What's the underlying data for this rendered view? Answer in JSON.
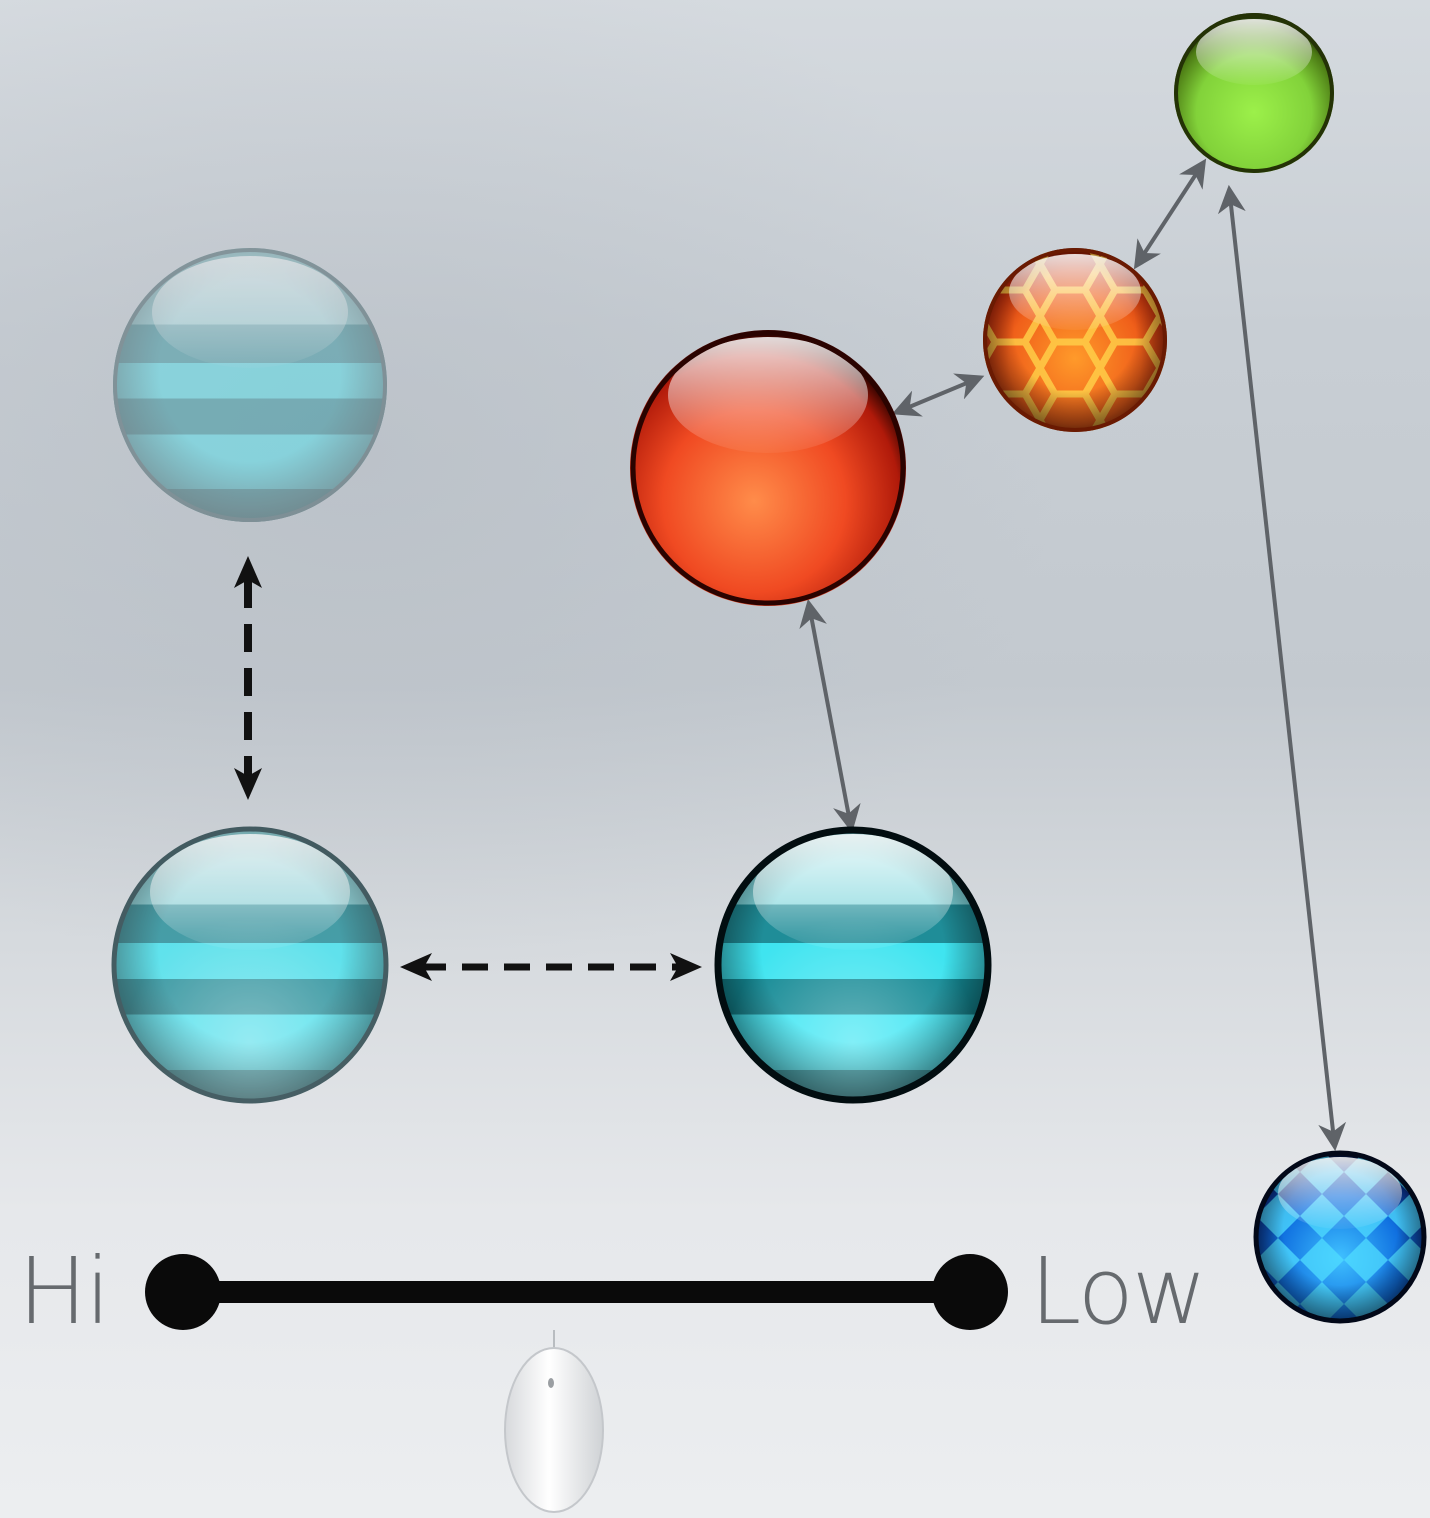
{
  "slider": {
    "hi_label": "Hi",
    "low_label": "Low"
  },
  "spheres": [
    {
      "id": "cyan-striped-faded",
      "style": "striped",
      "color": "#6fd3dc",
      "opacity": 0.45
    },
    {
      "id": "cyan-striped-medium",
      "style": "striped",
      "color": "#3fd9e6",
      "opacity": 0.8
    },
    {
      "id": "cyan-striped-glossy",
      "style": "striped",
      "color": "#22e3f0",
      "opacity": 1
    },
    {
      "id": "red-glossy",
      "style": "plain",
      "color": "#f2552a"
    },
    {
      "id": "orange-honeycomb",
      "style": "hexagon",
      "color": "#f07b1a"
    },
    {
      "id": "green-glossy",
      "style": "plain",
      "color": "#8fe43a"
    },
    {
      "id": "blue-diamond",
      "style": "diamond",
      "color": "#1d8cf0"
    }
  ],
  "colors": {
    "arrow_dashed": "#111111",
    "arrow_solid": "#5f6368",
    "slider_bar": "#0a0a0a",
    "label_text": "#666a6e"
  },
  "icons": [
    "mouse-icon"
  ]
}
